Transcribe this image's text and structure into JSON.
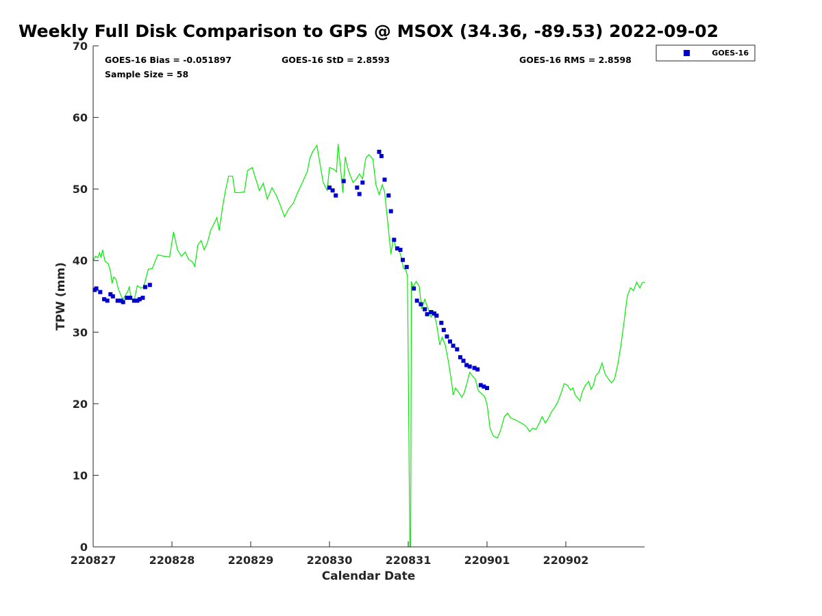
{
  "chart_data": {
    "type": "scatter",
    "title": "Weekly Full Disk Comparison to GPS @ MSOX (34.36, -89.53) 2022-09-02",
    "xlabel": "Calendar Date",
    "ylabel": "TPW (mm)",
    "xlim": [
      0,
      7
    ],
    "ylim": [
      0,
      70
    ],
    "y_ticks": [
      0,
      10,
      20,
      30,
      40,
      50,
      60,
      70
    ],
    "x_ticks": [
      {
        "value": 0,
        "label": "220827"
      },
      {
        "value": 1,
        "label": "220828"
      },
      {
        "value": 2,
        "label": "220829"
      },
      {
        "value": 3,
        "label": "220830"
      },
      {
        "value": 4,
        "label": "220831"
      },
      {
        "value": 5,
        "label": "220901"
      },
      {
        "value": 6,
        "label": "220902"
      }
    ],
    "grid": false,
    "legend_position": "top-right, outside plot",
    "stats": {
      "bias": "GOES-16 Bias = -0.051897",
      "std": "GOES-16 StD = 2.8593",
      "rms": "GOES-16 RMS = 2.8598",
      "sample": "Sample Size = 58"
    },
    "series": [
      {
        "name": "GOES-16",
        "kind": "points",
        "color": "#0000cc",
        "points": [
          [
            0.02,
            35.9
          ],
          [
            0.04,
            36.1
          ],
          [
            0.09,
            35.6
          ],
          [
            0.14,
            34.6
          ],
          [
            0.18,
            34.4
          ],
          [
            0.22,
            35.3
          ],
          [
            0.25,
            35.0
          ],
          [
            0.31,
            34.4
          ],
          [
            0.35,
            34.4
          ],
          [
            0.38,
            34.2
          ],
          [
            0.43,
            34.8
          ],
          [
            0.47,
            34.8
          ],
          [
            0.52,
            34.4
          ],
          [
            0.56,
            34.4
          ],
          [
            0.59,
            34.6
          ],
          [
            0.63,
            34.8
          ],
          [
            0.66,
            36.3
          ],
          [
            0.72,
            36.6
          ],
          [
            3.0,
            50.2
          ],
          [
            3.04,
            49.8
          ],
          [
            3.08,
            49.1
          ],
          [
            3.18,
            51.1
          ],
          [
            3.35,
            50.2
          ],
          [
            3.38,
            49.3
          ],
          [
            3.42,
            50.9
          ],
          [
            3.63,
            55.2
          ],
          [
            3.66,
            54.6
          ],
          [
            3.7,
            51.3
          ],
          [
            3.75,
            49.1
          ],
          [
            3.78,
            46.9
          ],
          [
            3.82,
            42.9
          ],
          [
            3.86,
            41.7
          ],
          [
            3.9,
            41.5
          ],
          [
            3.93,
            40.1
          ],
          [
            3.98,
            39.1
          ],
          [
            4.07,
            36.1
          ],
          [
            4.11,
            34.4
          ],
          [
            4.16,
            33.9
          ],
          [
            4.21,
            33.2
          ],
          [
            4.24,
            32.5
          ],
          [
            4.29,
            32.8
          ],
          [
            4.33,
            32.6
          ],
          [
            4.36,
            32.3
          ],
          [
            4.42,
            31.3
          ],
          [
            4.45,
            30.3
          ],
          [
            4.49,
            29.4
          ],
          [
            4.53,
            28.7
          ],
          [
            4.57,
            28.1
          ],
          [
            4.62,
            27.6
          ],
          [
            4.66,
            26.5
          ],
          [
            4.7,
            26.0
          ],
          [
            4.74,
            25.4
          ],
          [
            4.78,
            25.2
          ],
          [
            4.84,
            25.0
          ],
          [
            4.88,
            24.8
          ],
          [
            4.92,
            22.6
          ],
          [
            4.96,
            22.4
          ],
          [
            5.0,
            22.2
          ]
        ]
      },
      {
        "name": "GPS",
        "kind": "line",
        "color": "#00ee00",
        "points": [
          [
            0.0,
            40.0
          ],
          [
            0.03,
            40.6
          ],
          [
            0.06,
            40.4
          ],
          [
            0.08,
            41.1
          ],
          [
            0.1,
            40.4
          ],
          [
            0.12,
            41.5
          ],
          [
            0.15,
            39.9
          ],
          [
            0.19,
            39.6
          ],
          [
            0.22,
            38.5
          ],
          [
            0.24,
            36.8
          ],
          [
            0.26,
            37.7
          ],
          [
            0.29,
            37.4
          ],
          [
            0.32,
            36.0
          ],
          [
            0.35,
            35.2
          ],
          [
            0.38,
            34.5
          ],
          [
            0.41,
            35.2
          ],
          [
            0.44,
            35.7
          ],
          [
            0.46,
            36.4
          ],
          [
            0.48,
            34.6
          ],
          [
            0.52,
            34.4
          ],
          [
            0.56,
            36.5
          ],
          [
            0.6,
            36.2
          ],
          [
            0.64,
            36.3
          ],
          [
            0.7,
            38.8
          ],
          [
            0.75,
            38.9
          ],
          [
            0.82,
            40.8
          ],
          [
            0.9,
            40.6
          ],
          [
            0.97,
            40.5
          ],
          [
            1.02,
            44.0
          ],
          [
            1.07,
            41.5
          ],
          [
            1.12,
            40.6
          ],
          [
            1.17,
            41.2
          ],
          [
            1.21,
            40.2
          ],
          [
            1.26,
            39.8
          ],
          [
            1.29,
            39.2
          ],
          [
            1.33,
            42.2
          ],
          [
            1.37,
            42.8
          ],
          [
            1.41,
            41.5
          ],
          [
            1.45,
            42.5
          ],
          [
            1.49,
            44.2
          ],
          [
            1.53,
            45.1
          ],
          [
            1.57,
            46.0
          ],
          [
            1.6,
            44.2
          ],
          [
            1.64,
            47.3
          ],
          [
            1.68,
            49.8
          ],
          [
            1.72,
            51.8
          ],
          [
            1.77,
            51.8
          ],
          [
            1.8,
            49.5
          ],
          [
            1.86,
            49.5
          ],
          [
            1.92,
            49.6
          ],
          [
            1.96,
            52.6
          ],
          [
            2.02,
            53.0
          ],
          [
            2.07,
            51.2
          ],
          [
            2.11,
            49.8
          ],
          [
            2.16,
            50.8
          ],
          [
            2.21,
            48.6
          ],
          [
            2.27,
            50.2
          ],
          [
            2.33,
            49.0
          ],
          [
            2.38,
            47.6
          ],
          [
            2.43,
            46.1
          ],
          [
            2.48,
            47.2
          ],
          [
            2.54,
            48.0
          ],
          [
            2.6,
            49.6
          ],
          [
            2.66,
            51.0
          ],
          [
            2.72,
            52.5
          ],
          [
            2.75,
            54.3
          ],
          [
            2.79,
            55.3
          ],
          [
            2.84,
            56.1
          ],
          [
            2.88,
            53.5
          ],
          [
            2.92,
            50.9
          ],
          [
            2.97,
            49.8
          ],
          [
            3.0,
            53.0
          ],
          [
            3.05,
            52.8
          ],
          [
            3.09,
            52.4
          ],
          [
            3.11,
            56.3
          ],
          [
            3.14,
            52.9
          ],
          [
            3.17,
            49.5
          ],
          [
            3.2,
            54.5
          ],
          [
            3.23,
            53.0
          ],
          [
            3.26,
            52.0
          ],
          [
            3.3,
            50.9
          ],
          [
            3.34,
            51.4
          ],
          [
            3.38,
            52.1
          ],
          [
            3.42,
            51.4
          ],
          [
            3.46,
            54.3
          ],
          [
            3.5,
            54.8
          ],
          [
            3.55,
            54.2
          ],
          [
            3.59,
            50.6
          ],
          [
            3.63,
            49.2
          ],
          [
            3.67,
            50.6
          ],
          [
            3.7,
            49.6
          ],
          [
            3.74,
            45.3
          ],
          [
            3.78,
            40.9
          ],
          [
            3.81,
            43.2
          ],
          [
            3.84,
            41.8
          ],
          [
            3.88,
            41.6
          ],
          [
            3.91,
            40.5
          ],
          [
            3.94,
            38.9
          ],
          [
            3.97,
            38.7
          ],
          [
            3.99,
            37.8
          ],
          [
            4.02,
            0.0
          ],
          [
            4.03,
            0.0
          ],
          [
            4.04,
            37.1
          ],
          [
            4.06,
            36.3
          ],
          [
            4.1,
            37.1
          ],
          [
            4.14,
            36.4
          ],
          [
            4.17,
            33.2
          ],
          [
            4.21,
            34.6
          ],
          [
            4.25,
            33.3
          ],
          [
            4.29,
            32.1
          ],
          [
            4.32,
            32.9
          ],
          [
            4.36,
            31.1
          ],
          [
            4.4,
            28.2
          ],
          [
            4.43,
            29.3
          ],
          [
            4.47,
            28.2
          ],
          [
            4.51,
            25.9
          ],
          [
            4.55,
            23.0
          ],
          [
            4.57,
            21.2
          ],
          [
            4.6,
            22.2
          ],
          [
            4.64,
            21.6
          ],
          [
            4.68,
            20.9
          ],
          [
            4.71,
            21.5
          ],
          [
            4.75,
            23.1
          ],
          [
            4.78,
            24.4
          ],
          [
            4.82,
            23.8
          ],
          [
            4.85,
            23.5
          ],
          [
            4.89,
            21.8
          ],
          [
            4.93,
            21.4
          ],
          [
            4.97,
            21.0
          ],
          [
            5.0,
            19.9
          ],
          [
            5.04,
            16.5
          ],
          [
            5.08,
            15.5
          ],
          [
            5.13,
            15.2
          ],
          [
            5.17,
            16.2
          ],
          [
            5.22,
            18.2
          ],
          [
            5.26,
            18.7
          ],
          [
            5.3,
            18.0
          ],
          [
            5.35,
            17.8
          ],
          [
            5.4,
            17.5
          ],
          [
            5.45,
            17.2
          ],
          [
            5.5,
            16.8
          ],
          [
            5.54,
            16.1
          ],
          [
            5.58,
            16.6
          ],
          [
            5.62,
            16.4
          ],
          [
            5.66,
            17.2
          ],
          [
            5.7,
            18.2
          ],
          [
            5.74,
            17.3
          ],
          [
            5.78,
            18.0
          ],
          [
            5.82,
            18.9
          ],
          [
            5.86,
            19.5
          ],
          [
            5.9,
            20.3
          ],
          [
            5.94,
            21.5
          ],
          [
            5.98,
            22.8
          ],
          [
            6.02,
            22.6
          ],
          [
            6.06,
            21.9
          ],
          [
            6.09,
            22.2
          ],
          [
            6.12,
            21.2
          ],
          [
            6.15,
            20.8
          ],
          [
            6.18,
            20.4
          ],
          [
            6.21,
            21.7
          ],
          [
            6.25,
            22.6
          ],
          [
            6.29,
            23.1
          ],
          [
            6.32,
            22.0
          ],
          [
            6.35,
            22.6
          ],
          [
            6.38,
            23.9
          ],
          [
            6.42,
            24.4
          ],
          [
            6.46,
            25.7
          ],
          [
            6.5,
            24.1
          ],
          [
            6.54,
            23.5
          ],
          [
            6.58,
            22.9
          ],
          [
            6.62,
            23.5
          ],
          [
            6.66,
            25.5
          ],
          [
            6.7,
            28.2
          ],
          [
            6.74,
            31.5
          ],
          [
            6.78,
            35.0
          ],
          [
            6.82,
            36.2
          ],
          [
            6.86,
            35.8
          ],
          [
            6.9,
            37.0
          ],
          [
            6.94,
            36.2
          ],
          [
            6.97,
            36.9
          ],
          [
            7.0,
            37.0
          ]
        ]
      }
    ]
  }
}
